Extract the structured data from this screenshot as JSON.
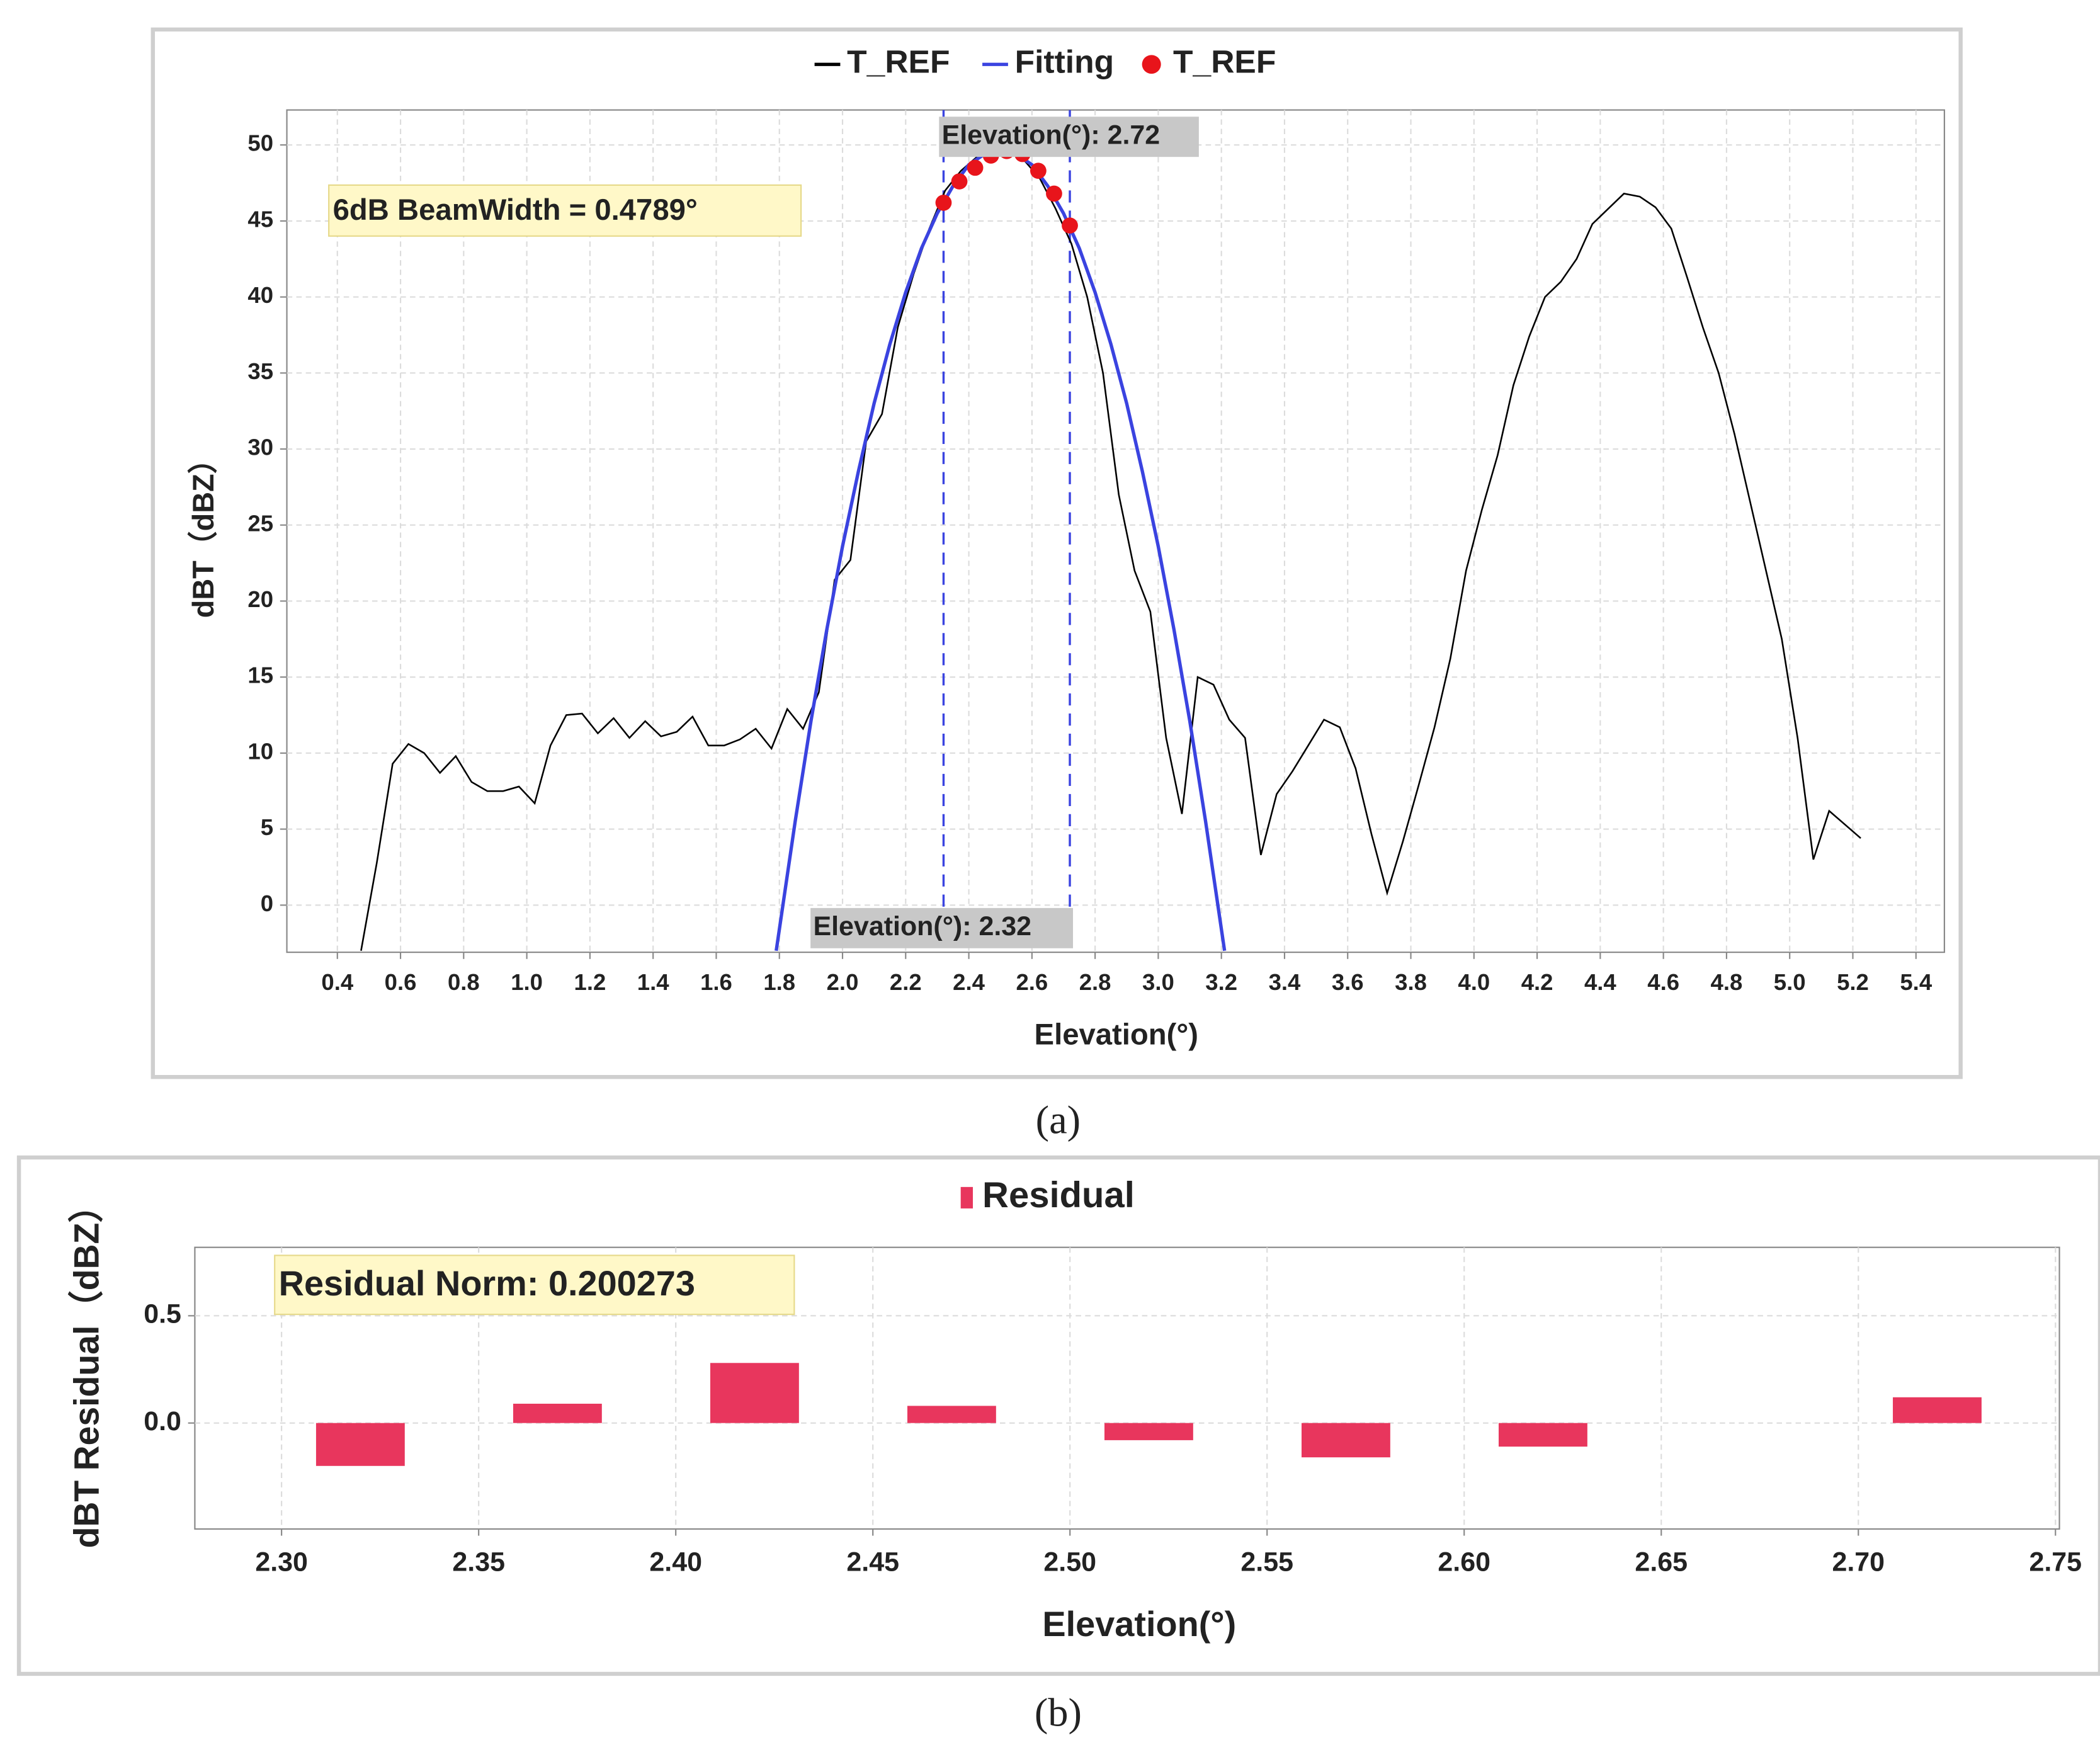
{
  "chart_data": [
    {
      "type": "line",
      "x_label": "Elevation(°)",
      "y_label": "dBT（dBZ）",
      "xlim": [
        0.24,
        5.49
      ],
      "ylim": [
        -3.1,
        52.3
      ],
      "xticks": [
        0.4,
        0.6,
        0.8,
        {
          "value": 1,
          "label": "1.0"
        },
        1.2,
        1.4,
        1.6,
        1.8,
        {
          "value": 2,
          "label": "2.0"
        },
        2.2,
        2.4,
        2.6,
        2.8,
        {
          "value": 3,
          "label": "3.0"
        },
        3.2,
        3.4,
        3.6,
        3.8,
        {
          "value": 4,
          "label": "4.0"
        },
        4.2,
        4.4,
        4.6,
        4.8,
        {
          "value": 5,
          "label": "5.0"
        },
        5.2,
        5.4
      ],
      "yticks": [
        0,
        5,
        10,
        15,
        20,
        25,
        30,
        35,
        40,
        45,
        50
      ],
      "grid": true,
      "annotation": "6dB BeamWidth = 0.4789°",
      "vlines": [
        2.32,
        2.72
      ],
      "vline_labels": [
        "Elevation(°): 2.32",
        "Elevation(°): 2.72"
      ],
      "series": [
        {
          "name": "T_REF",
          "type": "line",
          "color": "#000000",
          "x": [
            0.475,
            0.525,
            0.575,
            0.625,
            0.675,
            0.725,
            0.775,
            0.825,
            0.875,
            0.925,
            0.975,
            1.025,
            1.075,
            1.125,
            1.175,
            1.225,
            1.275,
            1.325,
            1.375,
            1.425,
            1.475,
            1.525,
            1.575,
            1.625,
            1.675,
            1.725,
            1.775,
            1.825,
            1.875,
            1.925,
            1.975,
            2.025,
            2.075,
            2.125,
            2.175,
            2.225,
            2.275,
            2.325,
            2.375,
            2.425,
            2.475,
            2.525,
            2.575,
            2.625,
            2.675,
            2.725,
            2.775,
            2.825,
            2.875,
            2.925,
            2.975,
            3.025,
            3.075,
            3.125,
            3.175,
            3.225,
            3.275,
            3.325,
            3.375,
            3.425,
            3.475,
            3.525,
            3.575,
            3.625,
            3.675,
            3.725,
            3.775,
            3.825,
            3.875,
            3.925,
            3.975,
            4.025,
            4.075,
            4.125,
            4.175,
            4.225,
            4.275,
            4.325,
            4.375,
            4.425,
            4.475,
            4.525,
            4.575,
            4.625,
            4.675,
            4.725,
            4.775,
            4.825,
            4.875,
            4.925,
            4.975,
            5.025,
            5.075,
            5.125,
            5.175,
            5.225
          ],
          "values": [
            -3,
            2.8,
            9.3,
            10.6,
            10,
            8.7,
            9.8,
            8.1,
            7.5,
            7.5,
            7.8,
            6.7,
            10.5,
            12.5,
            12.6,
            11.3,
            12.3,
            11,
            12.1,
            11.1,
            11.4,
            12.4,
            10.5,
            10.5,
            10.9,
            11.6,
            10.3,
            12.9,
            11.6,
            14,
            21.4,
            22.7,
            30.5,
            32.3,
            38,
            41.5,
            44.5,
            47,
            48.3,
            49.2,
            49.6,
            49.7,
            49,
            47.8,
            45.8,
            43.5,
            40,
            35,
            27,
            22,
            19.3,
            11,
            6,
            15,
            14.5,
            12.2,
            11,
            3.3,
            7.3,
            8.8,
            10.5,
            12.2,
            11.7,
            9,
            4.7,
            0.8,
            4.2,
            7.9,
            11.7,
            16.2,
            22,
            26,
            29.6,
            34.2,
            37.4,
            40,
            41,
            42.5,
            44.8,
            45.8,
            46.8,
            46.6,
            45.9,
            44.5,
            41.3,
            38,
            35,
            31,
            26.5,
            22,
            17.5,
            11,
            3,
            6.2,
            5.3,
            4.4
          ]
        },
        {
          "name": "Fitting",
          "type": "line",
          "color": "#3a43e0",
          "x": [
            1.79,
            1.85,
            1.9,
            1.95,
            2.0,
            2.05,
            2.1,
            2.15,
            2.2,
            2.25,
            2.3,
            2.35,
            2.4,
            2.45,
            2.5,
            2.55,
            2.6,
            2.65,
            2.7,
            2.75,
            2.8,
            2.85,
            2.9,
            2.95,
            3.0,
            3.05,
            3.1,
            3.15,
            3.21
          ],
          "values": [
            -3,
            5.5,
            12.1,
            18.1,
            23.6,
            28.5,
            33,
            36.9,
            40.3,
            43.2,
            45.5,
            47.3,
            48.7,
            49.4,
            49.7,
            49.4,
            48.7,
            47.3,
            45.5,
            43.2,
            40.3,
            36.9,
            33,
            28.5,
            23.6,
            18.1,
            12.1,
            5.5,
            -3
          ]
        },
        {
          "name": "T_REF",
          "type": "scatter",
          "color": "#e8141b",
          "x": [
            2.32,
            2.37,
            2.42,
            2.47,
            2.52,
            2.57,
            2.62,
            2.67,
            2.72
          ],
          "values": [
            46.2,
            47.6,
            48.5,
            49.3,
            49.6,
            49.4,
            48.3,
            46.8,
            44.7
          ]
        }
      ]
    },
    {
      "type": "bar",
      "x_label": "Elevation(°)",
      "y_label": "dBT Residual（dBZ）",
      "xlim": [
        2.278,
        2.751
      ],
      "ylim": [
        -0.494,
        0.819
      ],
      "xticks": [
        {
          "value": 2.3,
          "label": "2.30"
        },
        2.35,
        {
          "value": 2.4,
          "label": "2.40"
        },
        2.45,
        {
          "value": 2.5,
          "label": "2.50"
        },
        2.55,
        {
          "value": 2.6,
          "label": "2.60"
        },
        2.65,
        {
          "value": 2.7,
          "label": "2.70"
        },
        2.75
      ],
      "yticks": [
        {
          "value": 0,
          "label": "0.0"
        },
        0.5
      ],
      "grid": true,
      "annotation": "Residual Norm: 0.200273",
      "series": [
        {
          "name": "Residual",
          "type": "bar",
          "color": "#e8365d",
          "x": [
            2.32,
            2.37,
            2.42,
            2.47,
            2.52,
            2.57,
            2.62,
            2.72
          ],
          "values": [
            -0.2,
            0.09,
            0.28,
            0.08,
            -0.08,
            -0.16,
            -0.11,
            0.12
          ]
        }
      ]
    }
  ],
  "captions": [
    "(a)",
    "(b)"
  ]
}
